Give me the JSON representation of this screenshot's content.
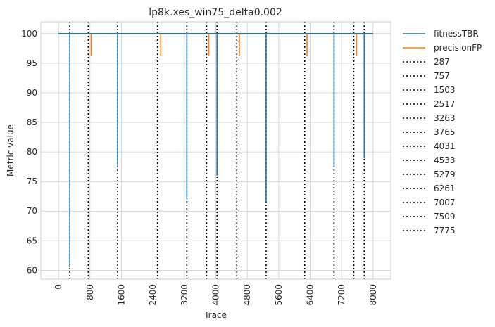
{
  "chart_data": {
    "type": "line",
    "title": "lp8k.xes_win75_delta0.002",
    "xlabel": "Trace",
    "ylabel": "Metric value",
    "xlim": [
      -450,
      8450
    ],
    "ylim": [
      58.5,
      102
    ],
    "xticks": [
      0,
      800,
      1600,
      2400,
      3200,
      4000,
      4800,
      5600,
      6400,
      7200,
      8000
    ],
    "yticks": [
      60,
      65,
      70,
      75,
      80,
      85,
      90,
      95,
      100
    ],
    "grid": true,
    "legend_position": "outside-right",
    "series": [
      {
        "name": "fitnessTBR",
        "color": "#1f77b4",
        "baseline": 100,
        "x_range": [
          0,
          8000
        ],
        "dips": [
          {
            "x": 287,
            "values": [
              71.5,
              60.5
            ]
          },
          {
            "x": 1503,
            "values": [
              77.5
            ]
          },
          {
            "x": 3263,
            "values": [
              72
            ]
          },
          {
            "x": 4031,
            "values": [
              76,
              79,
              82
            ]
          },
          {
            "x": 5279,
            "values": [
              71.5
            ]
          },
          {
            "x": 7007,
            "values": [
              77.5
            ]
          },
          {
            "x": 7775,
            "values": [
              79,
              81
            ]
          }
        ]
      },
      {
        "name": "precisionFP",
        "color": "#ff7f0e",
        "baseline": 100,
        "x_range": [
          0,
          8000
        ],
        "dips": [
          {
            "x": 830,
            "values": [
              96.2
            ]
          },
          {
            "x": 2600,
            "values": [
              96.2
            ]
          },
          {
            "x": 3820,
            "values": [
              96.2
            ]
          },
          {
            "x": 4600,
            "values": [
              96.2
            ]
          },
          {
            "x": 6320,
            "values": [
              96.2
            ]
          },
          {
            "x": 7580,
            "values": [
              96.2
            ]
          }
        ]
      }
    ],
    "vlines": {
      "style": "dotted",
      "color": "#000000",
      "positions": [
        287,
        757,
        1503,
        2517,
        3263,
        3765,
        4031,
        4533,
        5279,
        6261,
        7007,
        7509,
        7775
      ],
      "labels": [
        "287",
        "757",
        "1503",
        "2517",
        "3263",
        "3765",
        "4031",
        "4533",
        "5279",
        "6261",
        "7007",
        "7509",
        "7775"
      ]
    }
  }
}
